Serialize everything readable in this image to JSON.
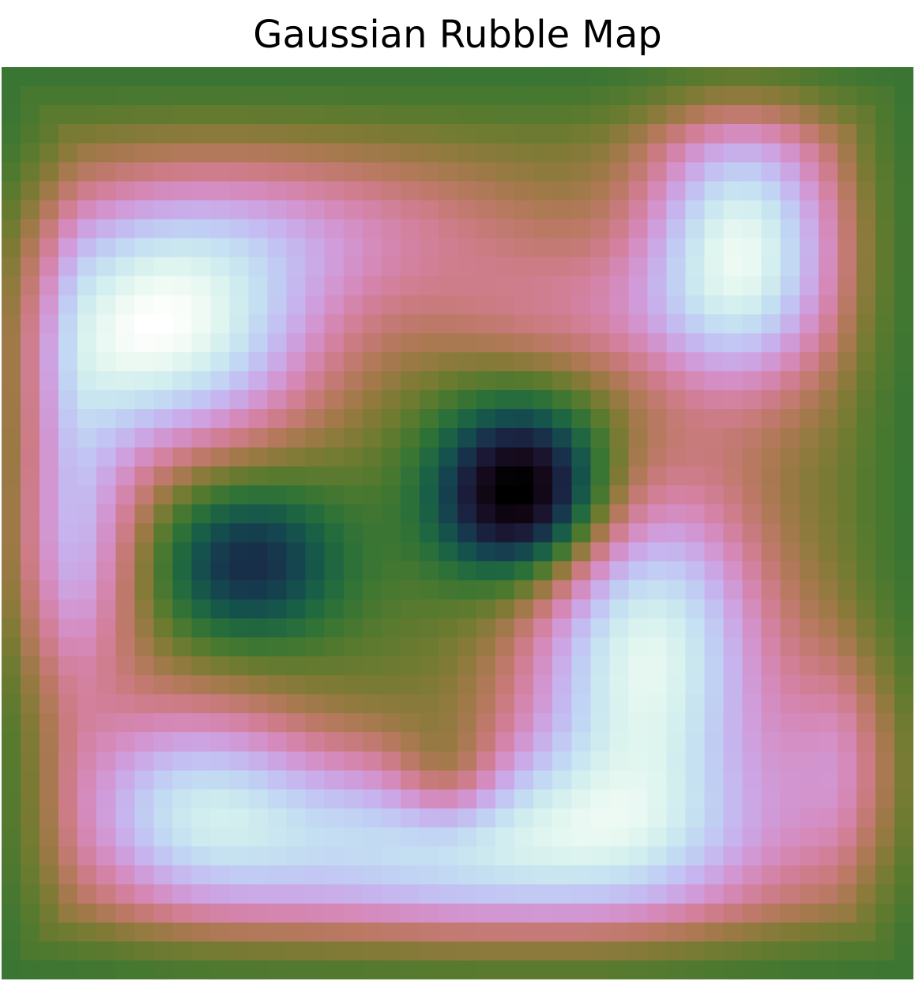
{
  "chart_data": {
    "type": "heatmap",
    "title": "Gaussian Rubble Map",
    "xlabel": "",
    "ylabel": "",
    "axes_visible": false,
    "colorbar": false,
    "colormap": "cubehelix",
    "grid": false,
    "x_cells": 48,
    "y_cells": 48,
    "value_range": [
      0,
      1
    ],
    "components": [
      {
        "amplitude": 0.82,
        "center_x": 8.5,
        "center_y": 14.0,
        "sigma_x": 5.8,
        "sigma_y": 4.3
      },
      {
        "amplitude": 0.78,
        "center_x": 39.0,
        "center_y": 9.5,
        "sigma_x": 3.6,
        "sigma_y": 5.2
      },
      {
        "amplitude": 0.8,
        "center_x": 34.0,
        "center_y": 31.0,
        "sigma_x": 4.5,
        "sigma_y": 6.5
      },
      {
        "amplitude": 0.7,
        "center_x": 25.0,
        "center_y": 41.0,
        "sigma_x": 11.0,
        "sigma_y": 3.6
      },
      {
        "amplitude": 0.48,
        "center_x": 10.0,
        "center_y": 38.5,
        "sigma_x": 4.5,
        "sigma_y": 4.0
      },
      {
        "amplitude": 0.55,
        "center_x": 3.0,
        "center_y": 25.0,
        "sigma_x": 3.0,
        "sigma_y": 6.0
      },
      {
        "amplitude": 0.3,
        "center_x": 16.0,
        "center_y": 8.5,
        "sigma_x": 10.0,
        "sigma_y": 3.0
      },
      {
        "amplitude": 0.3,
        "center_x": 45.0,
        "center_y": 36.0,
        "sigma_x": 3.0,
        "sigma_y": 4.0
      },
      {
        "amplitude": 0.22,
        "center_x": 30.0,
        "center_y": 13.0,
        "sigma_x": 6.0,
        "sigma_y": 2.5
      },
      {
        "amplitude": -0.75,
        "center_x": 27.5,
        "center_y": 22.5,
        "sigma_x": 3.2,
        "sigma_y": 3.2
      },
      {
        "amplitude": -0.4,
        "center_x": 13.0,
        "center_y": 26.0,
        "sigma_x": 3.5,
        "sigma_y": 3.0
      },
      {
        "amplitude": -0.25,
        "center_x": 23.5,
        "center_y": 37.5,
        "sigma_x": 2.0,
        "sigma_y": 2.0
      }
    ],
    "baseline": 0.18,
    "edge_falloff": 4.0
  }
}
